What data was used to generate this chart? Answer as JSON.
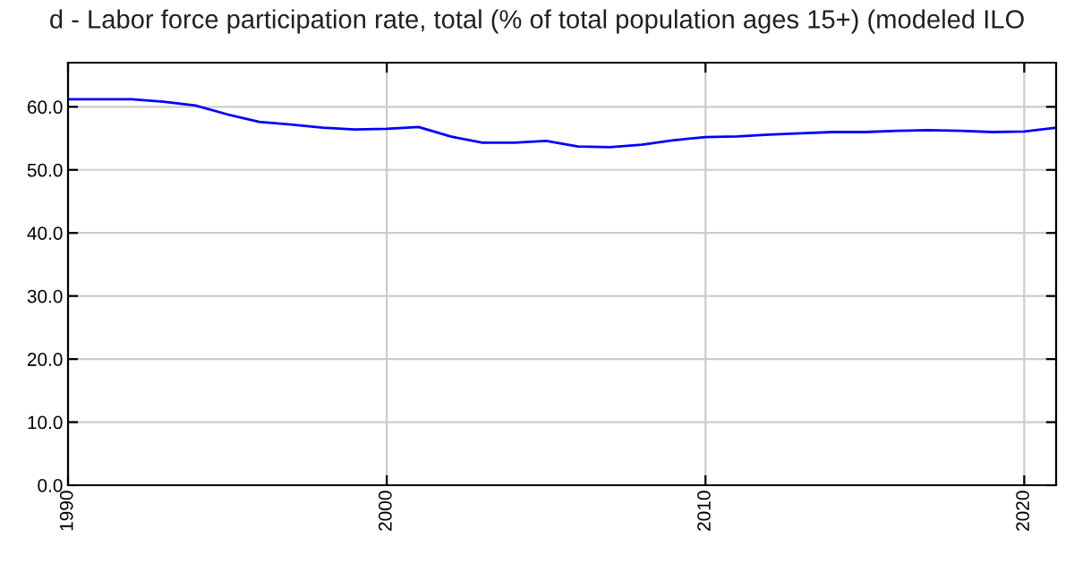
{
  "chart_data": {
    "type": "line",
    "title": "d - Labor force participation rate, total (% of total population ages 15+) (modeled ILO",
    "x": [
      1990,
      1991,
      1992,
      1993,
      1994,
      1995,
      1996,
      1997,
      1998,
      1999,
      2000,
      2001,
      2002,
      2003,
      2004,
      2005,
      2006,
      2007,
      2008,
      2009,
      2010,
      2011,
      2012,
      2013,
      2014,
      2015,
      2016,
      2017,
      2018,
      2019,
      2020,
      2021
    ],
    "series": [
      {
        "color": "#0000ff",
        "values": [
          61.2,
          61.2,
          61.2,
          60.8,
          60.2,
          58.8,
          57.6,
          57.2,
          56.7,
          56.4,
          56.5,
          56.8,
          55.3,
          54.3,
          54.3,
          54.6,
          53.7,
          53.6,
          54.0,
          54.7,
          55.2,
          55.3,
          55.6,
          55.8,
          56.0,
          56.0,
          56.2,
          56.3,
          56.2,
          56.0,
          56.1,
          56.7
        ]
      }
    ],
    "xlim": [
      1990,
      2021
    ],
    "ylim": [
      0,
      67
    ],
    "xticks": [
      1990,
      2000,
      2010,
      2020
    ],
    "yticks": [
      {
        "value": 0,
        "label": "0.0"
      },
      {
        "value": 10,
        "label": "10.0"
      },
      {
        "value": 20,
        "label": "20.0"
      },
      {
        "value": 30,
        "label": "30.0"
      },
      {
        "value": 40,
        "label": "40.0"
      },
      {
        "value": 50,
        "label": "50.0"
      },
      {
        "value": 60,
        "label": "60.0"
      }
    ],
    "grid": true,
    "marker": "none",
    "line_style": "solid",
    "legend": false
  }
}
